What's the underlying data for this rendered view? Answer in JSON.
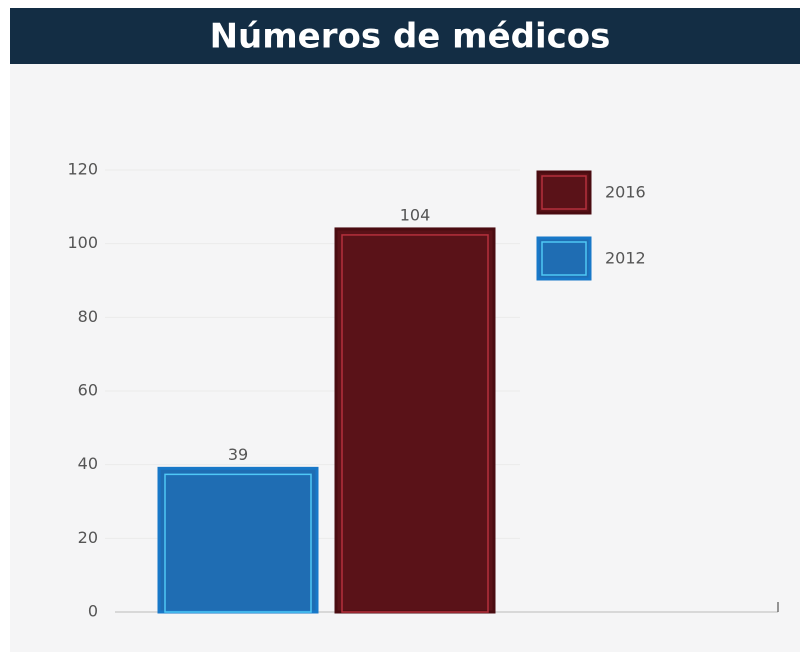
{
  "chart_data": {
    "type": "bar",
    "title": "Números de médicos",
    "categories": [
      null
    ],
    "series": [
      {
        "name": "2012",
        "color": "#1f6db3",
        "values": [
          39
        ]
      },
      {
        "name": "2016",
        "color": "#5a1218",
        "values": [
          104
        ]
      }
    ],
    "ylim": [
      0,
      120
    ],
    "yticks": [
      0,
      20,
      40,
      60,
      80,
      100,
      120
    ],
    "grid": true,
    "legend": "top-right"
  }
}
